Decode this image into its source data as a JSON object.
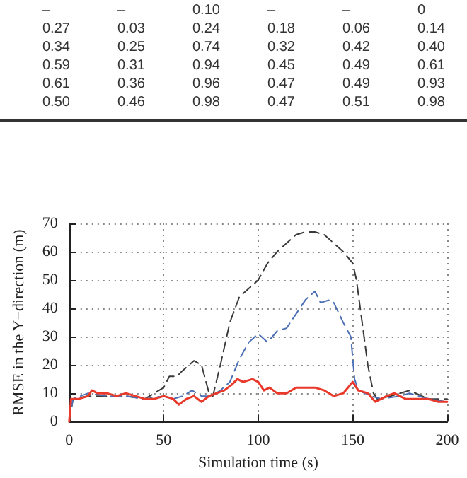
{
  "chart_data": {
    "type": "line",
    "xlabel": "Simulation time (s)",
    "ylabel": "RMSE in the Y−direction (m)",
    "annotations": [
      "– – 0.10 – – 0",
      "0.27 0.03 0.24 0.18 0.06 0.14",
      "0.34 0.25 0.74 0.32 0.42 0.40",
      "0.59 0.31 0.94 0.45 0.49 0.61",
      "0.61 0.36 0.96 0.47 0.49 0.93",
      "0.50 0.46 0.98 0.47 0.51 0.98"
    ],
    "series": [
      {
        "color": "#3a3a3a",
        "line_style": "dashed",
        "x": [
          0,
          2,
          10,
          20,
          30,
          40,
          45,
          50,
          53,
          57,
          60,
          66,
          70,
          74,
          76,
          80,
          85,
          90,
          95,
          100,
          105,
          110,
          115,
          120,
          125,
          130,
          135,
          140,
          145,
          150,
          152,
          155,
          158,
          161,
          163,
          170,
          175,
          180,
          190,
          200
        ],
        "values": [
          0,
          8,
          9,
          9,
          9,
          8,
          10,
          12,
          16,
          16,
          18,
          21.5,
          20,
          10,
          9,
          20,
          35,
          44,
          47,
          50,
          56,
          60,
          63,
          66,
          67,
          67,
          66,
          63,
          60,
          56,
          50,
          35,
          20,
          10,
          8,
          9,
          10,
          11,
          8,
          8
        ]
      },
      {
        "color": "#4a6fb5",
        "line_style": "dashed",
        "x": [
          0,
          2,
          10,
          20,
          30,
          40,
          50,
          55,
          60,
          65,
          70,
          75,
          80,
          85,
          90,
          95,
          100,
          105,
          110,
          115,
          120,
          125,
          130,
          133,
          138,
          140,
          145,
          149,
          151,
          153,
          160,
          165,
          175,
          180,
          190,
          200
        ],
        "values": [
          0,
          8,
          10,
          9,
          9,
          8,
          9,
          8,
          9,
          11,
          9,
          9,
          11,
          14,
          22,
          28,
          31,
          28,
          32,
          33,
          38,
          43,
          46,
          42,
          43,
          42,
          35,
          30,
          15,
          11,
          9,
          8,
          9,
          10,
          8,
          7
        ]
      },
      {
        "color": "#e8392a",
        "line_style": "solid",
        "x": [
          0,
          1,
          5,
          10,
          12,
          15,
          20,
          25,
          30,
          35,
          40,
          45,
          50,
          55,
          58,
          62,
          66,
          70,
          74,
          78,
          82,
          86,
          89,
          92,
          97,
          100,
          103,
          106,
          110,
          115,
          120,
          125,
          130,
          135,
          140,
          145,
          150,
          153,
          158,
          162,
          168,
          172,
          178,
          185,
          190,
          195,
          200
        ],
        "values": [
          0,
          8,
          8,
          9,
          11,
          10,
          10,
          9,
          10,
          9,
          8,
          8,
          9,
          8,
          6,
          8,
          9,
          7,
          9,
          10,
          11,
          13,
          15,
          14,
          15,
          14,
          11,
          12,
          10,
          10,
          12,
          12,
          12,
          11,
          9,
          10,
          14,
          11,
          10,
          7,
          9,
          10,
          8,
          8,
          8,
          7,
          7
        ]
      }
    ],
    "xlim": [
      0,
      200
    ],
    "xticks": [
      0,
      50,
      100,
      150,
      200
    ],
    "ylim": [
      0,
      70
    ],
    "yticks": [
      0,
      10,
      20,
      30,
      40,
      50,
      60,
      70
    ],
    "grid": true,
    "marker": "none"
  }
}
